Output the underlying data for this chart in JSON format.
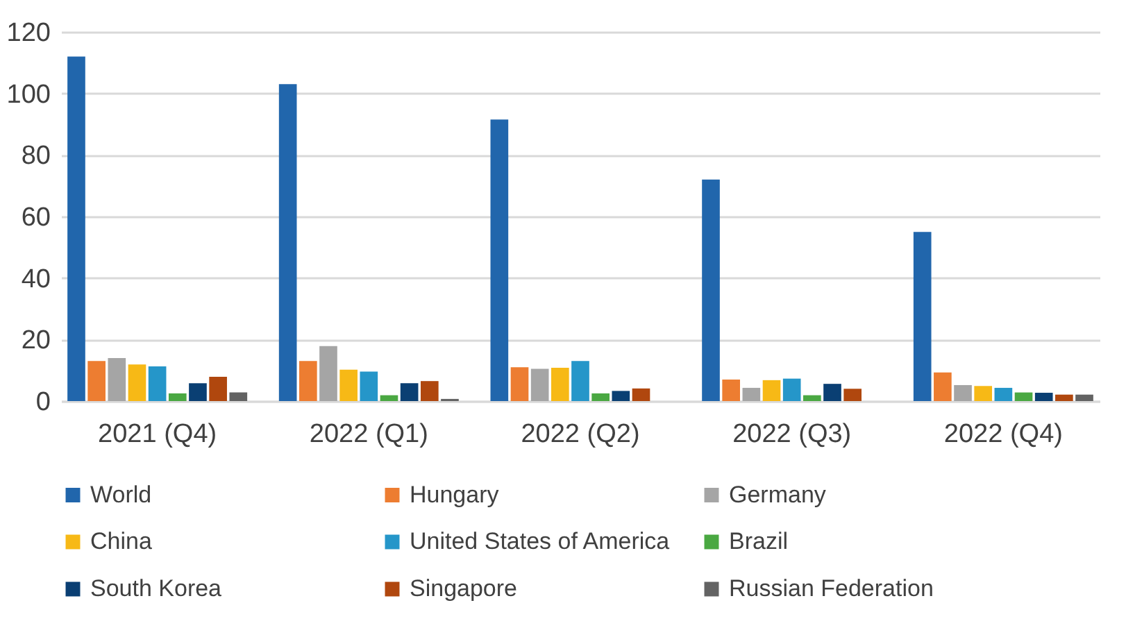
{
  "chart_data": {
    "type": "bar",
    "categories": [
      "2021 (Q4)",
      "2022 (Q1)",
      "2022 (Q2)",
      "2022 (Q3)",
      "2022 (Q4)"
    ],
    "series": [
      {
        "name": "World",
        "color": "#2166ac",
        "values": [
          112,
          103,
          91.5,
          72,
          55
        ]
      },
      {
        "name": "Hungary",
        "color": "#ed7d31",
        "values": [
          13,
          13,
          11,
          7,
          9.3
        ]
      },
      {
        "name": "Germany",
        "color": "#a5a5a5",
        "values": [
          14,
          17.9,
          10.5,
          4.3,
          5.2
        ]
      },
      {
        "name": "China",
        "color": "#f7b916",
        "values": [
          11.9,
          10.2,
          10.8,
          6.8,
          4.9
        ]
      },
      {
        "name": "United States of America",
        "color": "#2596c9",
        "values": [
          11.3,
          9.6,
          13,
          7.3,
          4.3
        ]
      },
      {
        "name": "Brazil",
        "color": "#4aa842",
        "values": [
          2.5,
          1.9,
          2.5,
          1.9,
          2.8
        ]
      },
      {
        "name": "South Korea",
        "color": "#0a3f73",
        "values": [
          5.8,
          5.8,
          3.3,
          5.6,
          2.7
        ]
      },
      {
        "name": "Singapore",
        "color": "#b0470e",
        "values": [
          7.9,
          6.5,
          4.1,
          4,
          2.1
        ]
      },
      {
        "name": "Russian Federation",
        "color": "#636363",
        "values": [
          2.8,
          0.7,
          null,
          null,
          2.1
        ]
      }
    ],
    "ylim": [
      0,
      120
    ],
    "yticks": [
      0,
      20,
      40,
      60,
      80,
      100,
      120
    ],
    "grid": "y",
    "legend": "bottom"
  }
}
